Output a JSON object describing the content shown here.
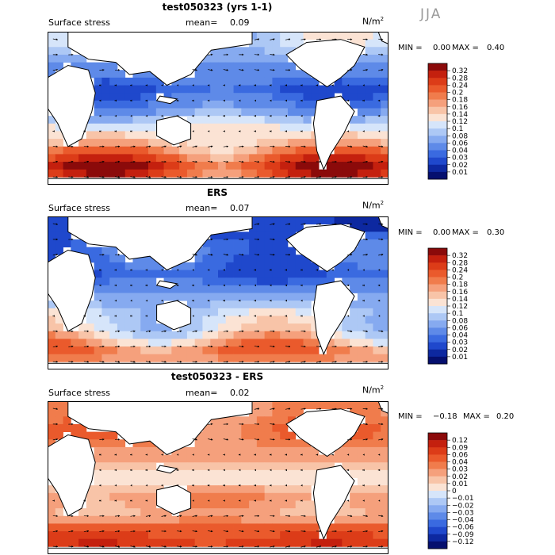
{
  "figure": {
    "season": "JJA",
    "units": "N/m",
    "units_sup": "2"
  },
  "chart_data": [
    {
      "type": "heatmap",
      "title": "test050323 (yrs 1-1)",
      "subtitle": "Surface stress",
      "mean_label": "mean=",
      "mean": "0.09",
      "min_label": "MIN =",
      "min": "0.00",
      "max_label": "MAX =",
      "max": "0.40",
      "colorbar": {
        "levels": [
          "0.32",
          "0.28",
          "0.24",
          "0.2",
          "0.18",
          "0.16",
          "0.14",
          "0.12",
          "0.1",
          "0.08",
          "0.06",
          "0.04",
          "0.03",
          "0.02",
          "0.01"
        ],
        "colors": [
          "#8b0a0a",
          "#c4200e",
          "#dc3c18",
          "#ea5a2c",
          "#f07c4c",
          "#f5a07c",
          "#f8c4a8",
          "#fbe3d4",
          "#d6e5fa",
          "#adc8f5",
          "#86aaf0",
          "#5e8ae8",
          "#3a6ae0",
          "#1f48cc",
          "#0d28a0",
          "#050f6e"
        ]
      },
      "field": {
        "shape": "sparse",
        "rows": 20,
        "cols": 44,
        "bands": [
          {
            "lat": 0.92,
            "val": 0.1
          },
          {
            "lat": 0.8,
            "val": 0.06
          },
          {
            "lat": 0.62,
            "val": 0.03
          },
          {
            "lat": 0.5,
            "val": 0.05
          },
          {
            "lat": 0.38,
            "val": 0.12
          },
          {
            "lat": 0.25,
            "val": 0.16
          },
          {
            "lat": 0.12,
            "val": 0.28
          },
          {
            "lat": 0.03,
            "val": 0.22
          }
        ]
      }
    },
    {
      "type": "heatmap",
      "title": "ERS",
      "subtitle": "Surface stress",
      "mean_label": "mean=",
      "mean": "0.07",
      "min_label": "MIN =",
      "min": "0.00",
      "max_label": "MAX =",
      "max": "0.30",
      "colorbar": {
        "levels": [
          "0.32",
          "0.28",
          "0.24",
          "0.2",
          "0.18",
          "0.16",
          "0.14",
          "0.12",
          "0.1",
          "0.08",
          "0.06",
          "0.04",
          "0.03",
          "0.02",
          "0.01"
        ],
        "colors": [
          "#8b0a0a",
          "#c4200e",
          "#dc3c18",
          "#ea5a2c",
          "#f07c4c",
          "#f5a07c",
          "#f8c4a8",
          "#fbe3d4",
          "#d6e5fa",
          "#adc8f5",
          "#86aaf0",
          "#5e8ae8",
          "#3a6ae0",
          "#1f48cc",
          "#0d28a0",
          "#050f6e"
        ]
      },
      "field": {
        "rows": 20,
        "cols": 44,
        "bands": [
          {
            "lat": 0.92,
            "val": 0.02
          },
          {
            "lat": 0.8,
            "val": 0.04
          },
          {
            "lat": 0.62,
            "val": 0.03
          },
          {
            "lat": 0.5,
            "val": 0.05
          },
          {
            "lat": 0.38,
            "val": 0.1
          },
          {
            "lat": 0.25,
            "val": 0.12
          },
          {
            "lat": 0.12,
            "val": 0.2
          },
          {
            "lat": 0.03,
            "val": 0.16
          }
        ]
      }
    },
    {
      "type": "heatmap",
      "title": "test050323 - ERS",
      "subtitle": "Surface stress",
      "mean_label": "mean=",
      "mean": "0.02",
      "min_label": "MIN =",
      "min": "−0.18",
      "max_label": "MAX =",
      "max": "0.20",
      "colorbar": {
        "levels": [
          "0.12",
          "0.09",
          "0.06",
          "0.04",
          "0.03",
          "0.02",
          "0.01",
          "0",
          "−0.01",
          "−0.02",
          "−0.03",
          "−0.04",
          "−0.06",
          "−0.09",
          "−0.12"
        ],
        "colors": [
          "#8b0a0a",
          "#c4200e",
          "#dc3c18",
          "#ea5a2c",
          "#f07c4c",
          "#f5a07c",
          "#f8c4a8",
          "#fbe3d4",
          "#d6e5fa",
          "#adc8f5",
          "#86aaf0",
          "#5e8ae8",
          "#3a6ae0",
          "#1f48cc",
          "#0d28a0",
          "#050f6e"
        ]
      },
      "field": {
        "rows": 20,
        "cols": 44,
        "bands": [
          {
            "lat": 0.92,
            "val": 0.03
          },
          {
            "lat": 0.8,
            "val": 0.04
          },
          {
            "lat": 0.62,
            "val": 0.02
          },
          {
            "lat": 0.5,
            "val": 0.0
          },
          {
            "lat": 0.38,
            "val": 0.03
          },
          {
            "lat": 0.25,
            "val": 0.02
          },
          {
            "lat": 0.12,
            "val": 0.06
          },
          {
            "lat": 0.03,
            "val": 0.09
          }
        ]
      }
    }
  ]
}
